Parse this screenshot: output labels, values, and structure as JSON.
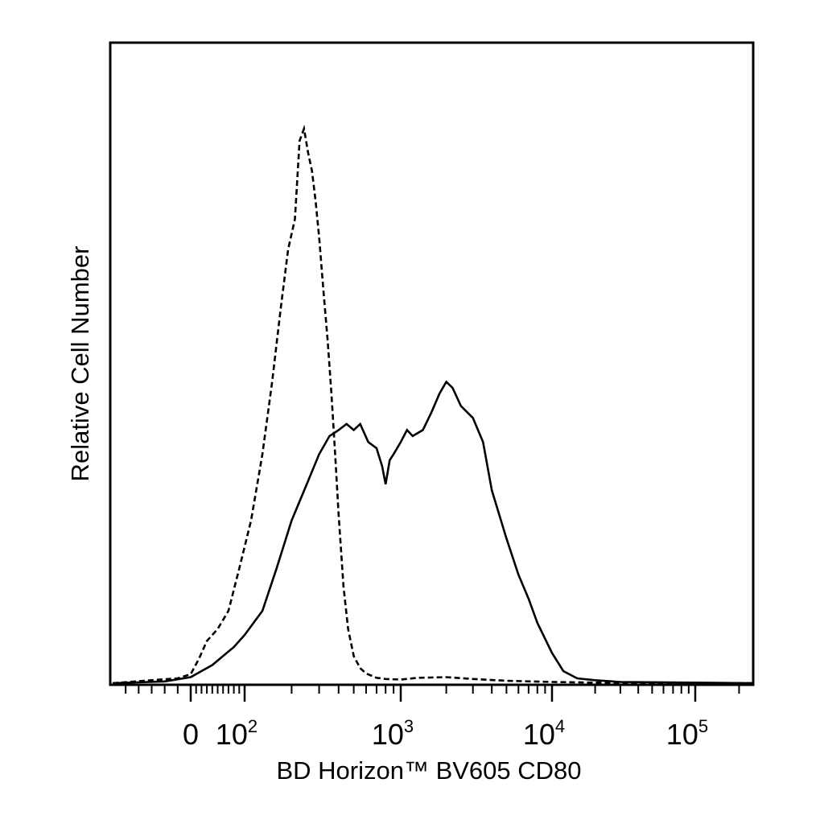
{
  "chart_data": {
    "type": "line",
    "title": "",
    "xlabel": "BD Horizon™ BV605 CD80",
    "ylabel": "Relative Cell Number",
    "x_scale": "logicle (biexponential)",
    "xlim": [
      -60,
      250000
    ],
    "ylim": [
      0,
      100
    ],
    "grid": false,
    "legend": "none",
    "x_tick_labels": [
      {
        "value": 0,
        "base": "0",
        "exp": ""
      },
      {
        "value": 100,
        "base": "10",
        "exp": "2"
      },
      {
        "value": 1000,
        "base": "10",
        "exp": "3"
      },
      {
        "value": 10000,
        "base": "10",
        "exp": "4"
      },
      {
        "value": 100000,
        "base": "10",
        "exp": "5"
      }
    ],
    "series": [
      {
        "style": "dashed",
        "color": "#000000",
        "x": [
          -60,
          -30,
          -10,
          0,
          15,
          30,
          50,
          70,
          90,
          110,
          130,
          150,
          170,
          190,
          210,
          225,
          240,
          255,
          270,
          285,
          300,
          320,
          340,
          360,
          380,
          400,
          430,
          460,
          500,
          550,
          600,
          700,
          800,
          1000,
          1300,
          2000,
          3000,
          5000,
          10000,
          20000,
          50000,
          250000
        ],
        "y": [
          0,
          0.5,
          0.8,
          1.5,
          4,
          7,
          9,
          12,
          19,
          27,
          38,
          50,
          62,
          72,
          77,
          90,
          92,
          88,
          85,
          80,
          74,
          65,
          57,
          48,
          38,
          28,
          16,
          9,
          4.5,
          2.5,
          1.6,
          0.9,
          0.7,
          0.6,
          0.9,
          1.0,
          0.7,
          0.4,
          0.2,
          0.1,
          0.05,
          0
        ]
      },
      {
        "style": "solid",
        "color": "#000000",
        "x": [
          -60,
          -20,
          0,
          20,
          40,
          60,
          80,
          100,
          130,
          160,
          200,
          250,
          300,
          350,
          400,
          450,
          500,
          550,
          620,
          700,
          760,
          800,
          850,
          900,
          1000,
          1100,
          1200,
          1400,
          1600,
          1800,
          2000,
          2200,
          2500,
          3000,
          3500,
          4000,
          5000,
          6000,
          7000,
          8000,
          10000,
          12000,
          15000,
          20000,
          30000,
          250000
        ],
        "y": [
          0,
          0.3,
          1,
          2,
          3,
          4.5,
          6,
          8,
          12,
          19,
          27,
          33,
          38,
          41,
          42,
          43,
          42,
          43,
          40,
          39,
          36,
          33,
          37,
          38,
          40,
          42,
          41,
          42,
          45,
          48,
          50,
          49,
          46,
          44,
          40,
          32,
          24,
          18,
          14,
          10,
          5,
          2,
          0.8,
          0.5,
          0.2,
          0
        ]
      }
    ]
  }
}
